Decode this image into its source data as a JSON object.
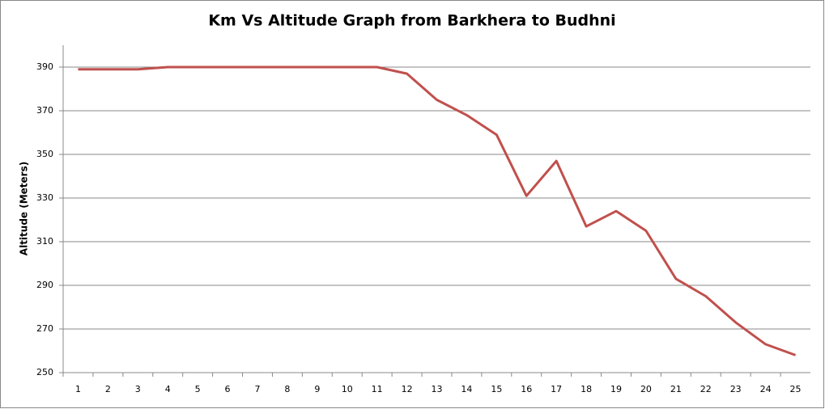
{
  "chart_data": {
    "type": "line",
    "title": "Km Vs Altitude Graph from Barkhera to Budhni",
    "y_label": "Altitude (Meters)",
    "categories": [
      "1",
      "2",
      "3",
      "4",
      "5",
      "6",
      "7",
      "8",
      "9",
      "10",
      "11",
      "12",
      "13",
      "14",
      "15",
      "16",
      "17",
      "18",
      "19",
      "20",
      "21",
      "22",
      "23",
      "24",
      "25"
    ],
    "values": [
      389,
      389,
      389,
      390,
      390,
      390,
      390,
      390,
      390,
      390,
      390,
      387,
      375,
      368,
      359,
      331,
      347,
      317,
      324,
      315,
      293,
      285,
      273,
      263,
      258
    ],
    "color": "#c0504d",
    "ylim": [
      250,
      400
    ],
    "yticks": [
      250,
      270,
      290,
      310,
      330,
      350,
      370,
      390
    ],
    "grid": true
  }
}
